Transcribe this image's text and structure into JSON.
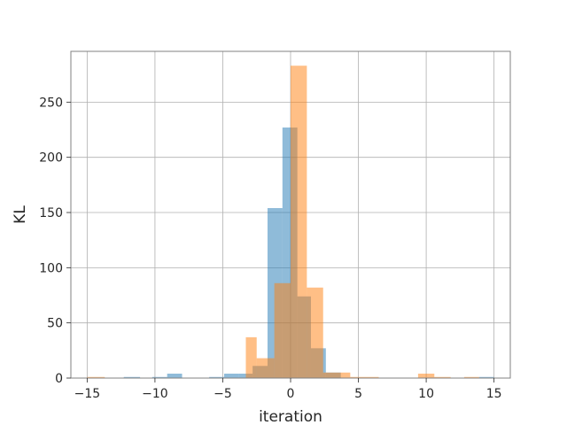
{
  "chart_data": {
    "type": "bar",
    "title": "",
    "xlabel": "iteration",
    "ylabel": "KL",
    "xlim": [
      -16.2,
      16.2
    ],
    "ylim": [
      0,
      296
    ],
    "grid": true,
    "x_ticks": [
      -15,
      -10,
      -5,
      0,
      5,
      10,
      15
    ],
    "y_ticks": [
      0,
      50,
      100,
      150,
      200,
      250
    ],
    "series": [
      {
        "color": "#1f77b4",
        "opacity": 0.5,
        "bins": [
          {
            "x0": -12.3,
            "x1": -11.1,
            "value": 1
          },
          {
            "x0": -10.2,
            "x1": -9.1,
            "value": 1
          },
          {
            "x0": -9.1,
            "x1": -8.0,
            "value": 4
          },
          {
            "x0": -6.0,
            "x1": -4.9,
            "value": 1
          },
          {
            "x0": -4.9,
            "x1": -3.8,
            "value": 4
          },
          {
            "x0": -3.8,
            "x1": -2.8,
            "value": 4
          },
          {
            "x0": -2.8,
            "x1": -1.7,
            "value": 11
          },
          {
            "x0": -1.7,
            "x1": -0.6,
            "value": 154
          },
          {
            "x0": -0.6,
            "x1": 0.5,
            "value": 227
          },
          {
            "x0": 0.5,
            "x1": 1.5,
            "value": 74
          },
          {
            "x0": 1.5,
            "x1": 2.6,
            "value": 27
          },
          {
            "x0": 2.6,
            "x1": 3.7,
            "value": 5
          },
          {
            "x0": 13.9,
            "x1": 15.0,
            "value": 1
          }
        ]
      },
      {
        "color": "#ff7f0e",
        "opacity": 0.5,
        "bins": [
          {
            "x0": -15.0,
            "x1": -13.7,
            "value": 1
          },
          {
            "x0": -3.3,
            "x1": -2.5,
            "value": 37
          },
          {
            "x0": -2.5,
            "x1": -1.2,
            "value": 18
          },
          {
            "x0": -1.2,
            "x1": 0.0,
            "value": 86
          },
          {
            "x0": 0.0,
            "x1": 1.2,
            "value": 283
          },
          {
            "x0": 1.2,
            "x1": 2.4,
            "value": 82
          },
          {
            "x0": 2.4,
            "x1": 3.6,
            "value": 5
          },
          {
            "x0": 3.6,
            "x1": 4.4,
            "value": 5
          },
          {
            "x0": 4.4,
            "x1": 6.5,
            "value": 1
          },
          {
            "x0": 9.4,
            "x1": 10.6,
            "value": 4
          },
          {
            "x0": 10.6,
            "x1": 11.8,
            "value": 1
          },
          {
            "x0": 12.8,
            "x1": 13.9,
            "value": 1
          }
        ]
      }
    ]
  }
}
